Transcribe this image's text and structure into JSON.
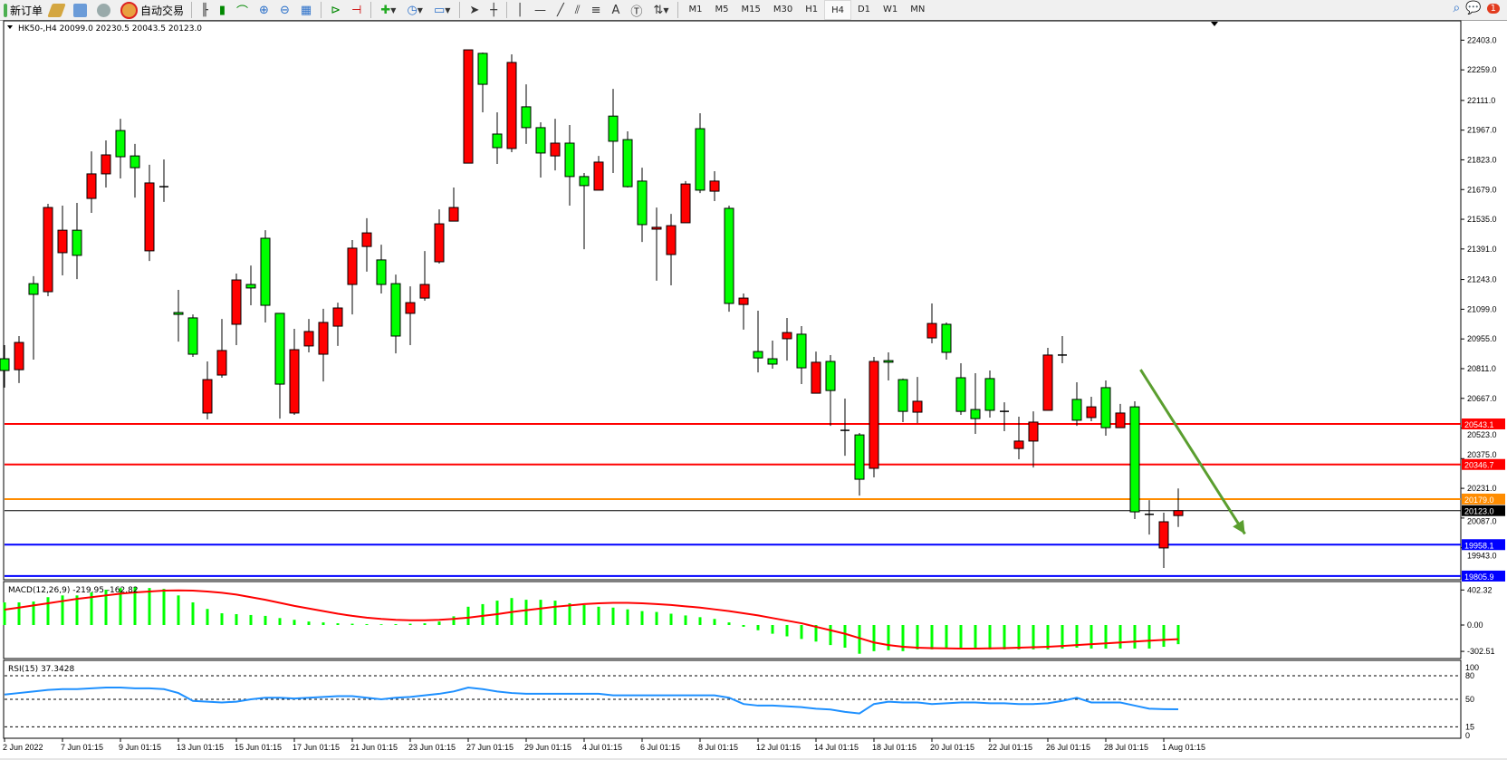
{
  "toolbar": {
    "new_order": "新订单",
    "auto_trading": "自动交易",
    "timeframes": [
      "M1",
      "M5",
      "M15",
      "M30",
      "H1",
      "H4",
      "D1",
      "W1",
      "MN"
    ],
    "active_timeframe": "H4",
    "notification_count": "1"
  },
  "chart": {
    "header": "HK50-,H4  20099.0 20230.5 20043.5 20123.0",
    "macd_label": "MACD(12,26,9) -219.95 -162.82",
    "rsi_label": "RSI(15) 37.3428",
    "colors": {
      "bull": "#ff0000",
      "bear": "#00ff00",
      "arrow": "#5a9e2f",
      "macd_hist": "#00ff00",
      "macd_signal": "#ff0000",
      "rsi": "#1e90ff"
    }
  },
  "chart_data": {
    "type": "candlestick",
    "symbol": "HK50-",
    "timeframe": "H4",
    "price_ticks": [
      "22403.0",
      "22259.0",
      "22111.0",
      "21967.0",
      "21823.0",
      "21679.0",
      "21535.0",
      "21391.0",
      "21243.0",
      "21099.0",
      "20955.0",
      "20811.0",
      "20667.0",
      "20523.0",
      "20375.0",
      "20231.0",
      "20087.0",
      "19943.0"
    ],
    "price_range": [
      19780,
      22470
    ],
    "time_labels": [
      "2 Jun 2022",
      "7 Jun 01:15",
      "9 Jun 01:15",
      "13 Jun 01:15",
      "15 Jun 01:15",
      "17 Jun 01:15",
      "21 Jun 01:15",
      "23 Jun 01:15",
      "27 Jun 01:15",
      "29 Jun 01:15",
      "4 Jul 01:15",
      "6 Jul 01:15",
      "8 Jul 01:15",
      "12 Jul 01:15",
      "14 Jul 01:15",
      "18 Jul 01:15",
      "20 Jul 01:15",
      "22 Jul 01:15",
      "26 Jul 01:15",
      "28 Jul 01:15",
      "1 Aug 01:15"
    ],
    "time_label_every_bars": 4,
    "ohlc": [
      [
        20859,
        20925,
        20719,
        20802
      ],
      [
        20806,
        20969,
        20741,
        20938
      ],
      [
        21223,
        21259,
        20855,
        21171
      ],
      [
        21184,
        21610,
        21162,
        21592
      ],
      [
        21373,
        21601,
        21263,
        21482
      ],
      [
        21482,
        21614,
        21245,
        21360
      ],
      [
        21636,
        21864,
        21566,
        21755
      ],
      [
        21755,
        21917,
        21689,
        21847
      ],
      [
        21965,
        22022,
        21733,
        21838
      ],
      [
        21842,
        21900,
        21640,
        21785
      ],
      [
        21382,
        21799,
        21333,
        21711
      ],
      [
        21693,
        21825,
        21619,
        21693
      ],
      [
        21083,
        21193,
        20942,
        21074
      ],
      [
        21057,
        21074,
        20868,
        20881
      ],
      [
        20596,
        20846,
        20565,
        20758
      ],
      [
        20780,
        21052,
        20767,
        20899
      ],
      [
        21026,
        21272,
        20925,
        21241
      ],
      [
        21219,
        21311,
        21118,
        21202
      ],
      [
        21443,
        21482,
        21035,
        21118
      ],
      [
        21079,
        21079,
        20569,
        20736
      ],
      [
        20596,
        21004,
        20587,
        20903
      ],
      [
        20921,
        21052,
        20890,
        20991
      ],
      [
        20881,
        21101,
        20749,
        21035
      ],
      [
        21017,
        21131,
        20921,
        21105
      ],
      [
        21219,
        21434,
        21074,
        21395
      ],
      [
        21403,
        21540,
        21281,
        21469
      ],
      [
        21338,
        21412,
        21175,
        21219
      ],
      [
        21223,
        21267,
        20885,
        20969
      ],
      [
        21079,
        21210,
        20925,
        21131
      ],
      [
        21153,
        21381,
        21140,
        21219
      ],
      [
        21329,
        21583,
        21320,
        21513
      ],
      [
        21526,
        21689,
        21526,
        21592
      ],
      [
        21807,
        22356,
        21807,
        22356
      ],
      [
        22339,
        22343,
        22053,
        22189
      ],
      [
        21948,
        22053,
        21803,
        21882
      ],
      [
        21878,
        22334,
        21860,
        22295
      ],
      [
        22080,
        22189,
        21900,
        21979
      ],
      [
        21979,
        22005,
        21737,
        21856
      ],
      [
        21842,
        22022,
        21772,
        21904
      ],
      [
        21904,
        21992,
        21601,
        21742
      ],
      [
        21742,
        21759,
        21390,
        21698
      ],
      [
        21676,
        21842,
        21676,
        21812
      ],
      [
        22035,
        22167,
        21759,
        21913
      ],
      [
        21921,
        21961,
        21689,
        21693
      ],
      [
        21720,
        21785,
        21425,
        21509
      ],
      [
        21487,
        21592,
        21237,
        21496
      ],
      [
        21364,
        21561,
        21215,
        21504
      ],
      [
        21518,
        21720,
        21518,
        21706
      ],
      [
        21974,
        22049,
        21662,
        21676
      ],
      [
        21671,
        21768,
        21623,
        21720
      ],
      [
        21588,
        21601,
        21087,
        21127
      ],
      [
        21122,
        21175,
        21000,
        21153
      ],
      [
        20894,
        21092,
        20793,
        20863
      ],
      [
        20859,
        20947,
        20811,
        20833
      ],
      [
        20956,
        21057,
        20850,
        20986
      ],
      [
        20978,
        21017,
        20736,
        20815
      ],
      [
        20692,
        20894,
        20692,
        20842
      ],
      [
        20846,
        20877,
        20534,
        20705
      ],
      [
        20512,
        20666,
        20389,
        20512
      ],
      [
        20490,
        20499,
        20196,
        20275
      ],
      [
        20328,
        20868,
        20284,
        20846
      ],
      [
        20850,
        20890,
        20754,
        20842
      ],
      [
        20758,
        20763,
        20552,
        20604
      ],
      [
        20600,
        20771,
        20547,
        20653
      ],
      [
        20960,
        21127,
        20934,
        21030
      ],
      [
        21026,
        21035,
        20855,
        20890
      ],
      [
        20767,
        20837,
        20587,
        20604
      ],
      [
        20613,
        20789,
        20495,
        20569
      ],
      [
        20763,
        20802,
        20574,
        20609
      ],
      [
        20604,
        20648,
        20508,
        20604
      ],
      [
        20424,
        20578,
        20372,
        20460
      ],
      [
        20460,
        20604,
        20332,
        20552
      ],
      [
        20609,
        20912,
        20609,
        20877
      ],
      [
        20877,
        20969,
        20837,
        20877
      ],
      [
        20662,
        20745,
        20534,
        20561
      ],
      [
        20574,
        20675,
        20556,
        20626
      ],
      [
        20719,
        20754,
        20486,
        20525
      ],
      [
        20525,
        20640,
        20525,
        20596
      ],
      [
        20626,
        20653,
        20082,
        20117
      ],
      [
        20105,
        20174,
        20007,
        20099
      ],
      [
        19942,
        20113,
        19845,
        20069
      ],
      [
        20099,
        20230.5,
        20043.5,
        20123.0
      ]
    ],
    "levels": [
      {
        "price": 20543.1,
        "label": "20543.1",
        "color": "#ff0000"
      },
      {
        "price": 20346.7,
        "label": "20346.7",
        "color": "#ff0000"
      },
      {
        "price": 20179.0,
        "label": "20179.0",
        "color": "#ff8c00"
      },
      {
        "price": 20123.0,
        "label": "20123.0",
        "color": "#000000"
      },
      {
        "price": 19958.1,
        "label": "19958.1",
        "color": "#0000ff"
      },
      {
        "price": 19805.9,
        "label": "19805.9",
        "color": "#0000ff"
      }
    ],
    "arrow": {
      "from": {
        "bar": 78.4,
        "price": 20806
      },
      "to": {
        "bar": 85.6,
        "price": 20010
      }
    },
    "macd": {
      "ticks": [
        "402.32",
        "0.00",
        "-302.51"
      ],
      "histogram": [
        260,
        260,
        270,
        320,
        340,
        340,
        375,
        405,
        425,
        435,
        425,
        415,
        340,
        260,
        185,
        135,
        125,
        115,
        105,
        80,
        60,
        40,
        30,
        20,
        15,
        10,
        8,
        10,
        15,
        20,
        40,
        100,
        210,
        240,
        280,
        310,
        290,
        290,
        280,
        250,
        230,
        210,
        200,
        180,
        160,
        150,
        130,
        110,
        90,
        70,
        30,
        -20,
        -60,
        -100,
        -130,
        -160,
        -190,
        -230,
        -260,
        -330,
        -300,
        -290,
        -300,
        -280,
        -280,
        -270,
        -270,
        -280,
        -280,
        -280,
        -280,
        -280,
        -280,
        -270,
        -260,
        -270,
        -270,
        -270,
        -270,
        -270,
        -250,
        -219.95
      ],
      "signal": [
        177,
        200,
        225,
        250,
        275,
        300,
        320,
        340,
        360,
        375,
        385,
        395,
        398,
        395,
        385,
        370,
        350,
        320,
        290,
        255,
        220,
        190,
        160,
        130,
        105,
        85,
        70,
        60,
        55,
        55,
        60,
        70,
        85,
        105,
        125,
        150,
        170,
        190,
        210,
        225,
        240,
        250,
        255,
        255,
        250,
        240,
        230,
        215,
        200,
        180,
        160,
        135,
        110,
        80,
        50,
        20,
        -20,
        -60,
        -100,
        -150,
        -200,
        -230,
        -250,
        -260,
        -265,
        -268,
        -270,
        -270,
        -268,
        -265,
        -260,
        -255,
        -250,
        -240,
        -230,
        -220,
        -210,
        -200,
        -190,
        -180,
        -170,
        -162.82
      ]
    },
    "rsi": {
      "ticks": [
        "100",
        "80",
        "50",
        "15",
        "0"
      ],
      "levels": [
        80,
        50,
        15
      ],
      "values": [
        56,
        58,
        60,
        62,
        63,
        63,
        64,
        65,
        65,
        64,
        64,
        63,
        58,
        48,
        47,
        46,
        47,
        50,
        52,
        52,
        51,
        52,
        53,
        54,
        54,
        52,
        50,
        52,
        53,
        55,
        57,
        60,
        65,
        63,
        60,
        58,
        57,
        57,
        57,
        57,
        57,
        57,
        55,
        55,
        55,
        55,
        55,
        55,
        55,
        55,
        52,
        44,
        42,
        42,
        41,
        40,
        38,
        37,
        34,
        32,
        44,
        47,
        46,
        46,
        44,
        45,
        46,
        46,
        45,
        45,
        44,
        44,
        45,
        48,
        52,
        46,
        46,
        46,
        42,
        38,
        37.5,
        37.34
      ]
    }
  }
}
